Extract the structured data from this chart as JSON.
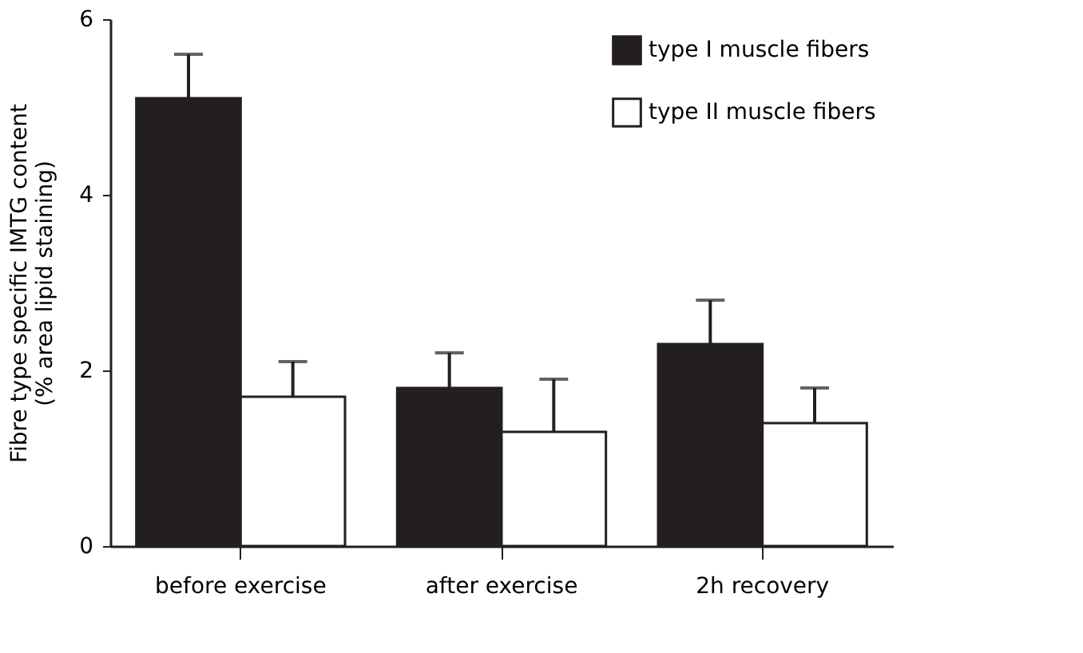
{
  "chart_data": {
    "type": "bar",
    "ylabel": "Fibre type specific IMTG content\n(% area lipid staining)",
    "categories": [
      "before  exercise",
      "after  exercise",
      "2h  recovery"
    ],
    "series": [
      {
        "name": "type I muscle fibers",
        "color": "#231f20",
        "values": [
          5.1,
          1.8,
          2.3
        ],
        "errors": [
          [
            5.1,
            5.6
          ],
          [
            1.8,
            2.2
          ],
          [
            2.3,
            2.8
          ]
        ]
      },
      {
        "name": "type II muscle fibers",
        "color": "#ffffff",
        "values": [
          1.7,
          1.3,
          1.4
        ],
        "errors": [
          [
            1.7,
            2.1
          ],
          [
            1.3,
            1.9
          ],
          [
            1.4,
            1.8
          ]
        ]
      }
    ],
    "ylim": [
      0,
      6
    ],
    "yticks": [
      0,
      2,
      4,
      6
    ],
    "grid": false,
    "legend": "top right"
  }
}
